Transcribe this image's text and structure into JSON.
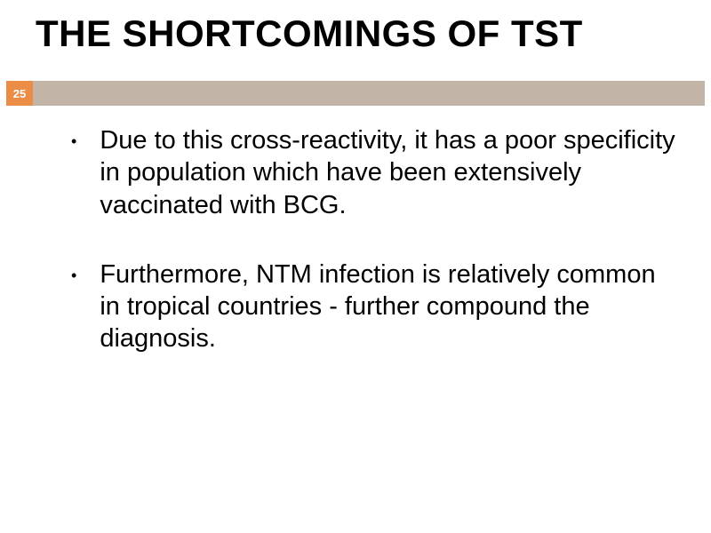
{
  "title": {
    "text": "THE SHORTCOMINGS OF TST",
    "style": "font-size:42px; color:#000000; font-weight:bold;"
  },
  "page_badge": {
    "number": "25",
    "style": "background-color:#eb8c47; color:#ffffff; font-size:13px; font-weight:bold;"
  },
  "stripe": {
    "style": "background-color:#c2b5a8;"
  },
  "bullets": [
    {
      "marker": "•",
      "text": "Due to this cross-reactivity, it has a poor specificity in population which have been extensively vaccinated with BCG.",
      "style": "font-size:29px; color:#000000;"
    },
    {
      "marker": "•",
      "text": "Furthermore, NTM infection is relatively common in tropical countries - further compound the diagnosis.",
      "style": "font-size:29px; color:#000000;"
    }
  ]
}
